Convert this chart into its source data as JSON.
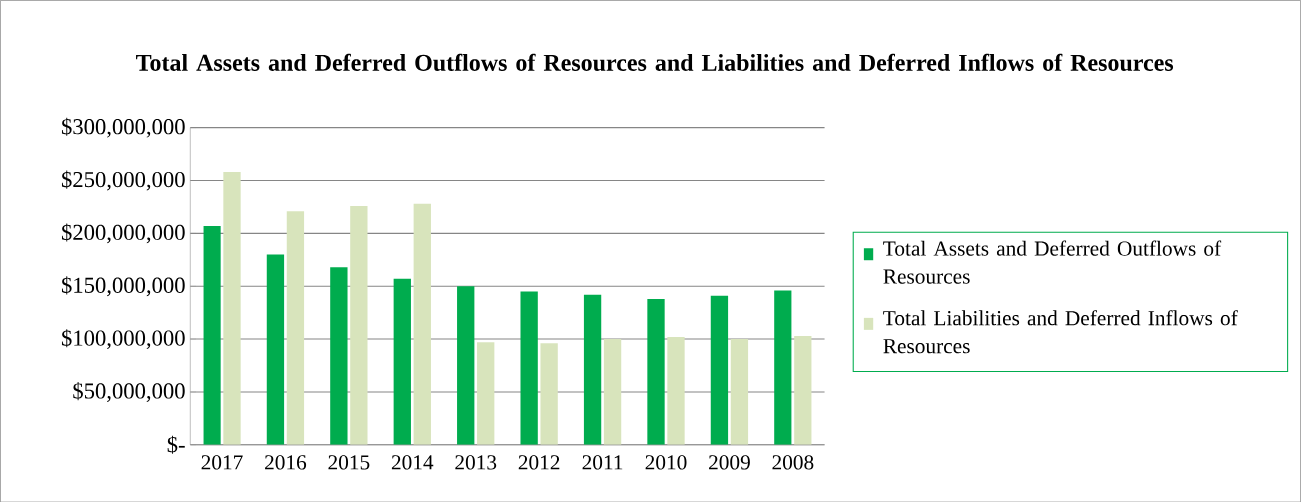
{
  "chart_data": {
    "type": "bar",
    "title": "Total Assets and Deferred Outflows of Resources and Liabilities and Deferred Inflows of Resources",
    "categories": [
      "2017",
      "2016",
      "2015",
      "2014",
      "2013",
      "2012",
      "2011",
      "2010",
      "2009",
      "2008"
    ],
    "series": [
      {
        "name": "Total Assets and Deferred Outflows of Resources",
        "color": "#00ac4e",
        "values": [
          207000000,
          180000000,
          168000000,
          157000000,
          150000000,
          145000000,
          142000000,
          138000000,
          141000000,
          146000000
        ]
      },
      {
        "name": "Total Liabilities and Deferred Inflows of Resources",
        "color": "#d8e4bc",
        "values": [
          258000000,
          221000000,
          226000000,
          228000000,
          97000000,
          96000000,
          100000000,
          102000000,
          100000000,
          103000000
        ]
      }
    ],
    "ylim": [
      0,
      300000000
    ],
    "yticks": [
      {
        "value": 0,
        "label": "$-"
      },
      {
        "value": 50000000,
        "label": "$50,000,000"
      },
      {
        "value": 100000000,
        "label": "$100,000,000"
      },
      {
        "value": 150000000,
        "label": "$150,000,000"
      },
      {
        "value": 200000000,
        "label": "$200,000,000"
      },
      {
        "value": 250000000,
        "label": "$250,000,000"
      },
      {
        "value": 300000000,
        "label": "$300,000,000"
      }
    ],
    "grid": "y",
    "legend": "right"
  }
}
